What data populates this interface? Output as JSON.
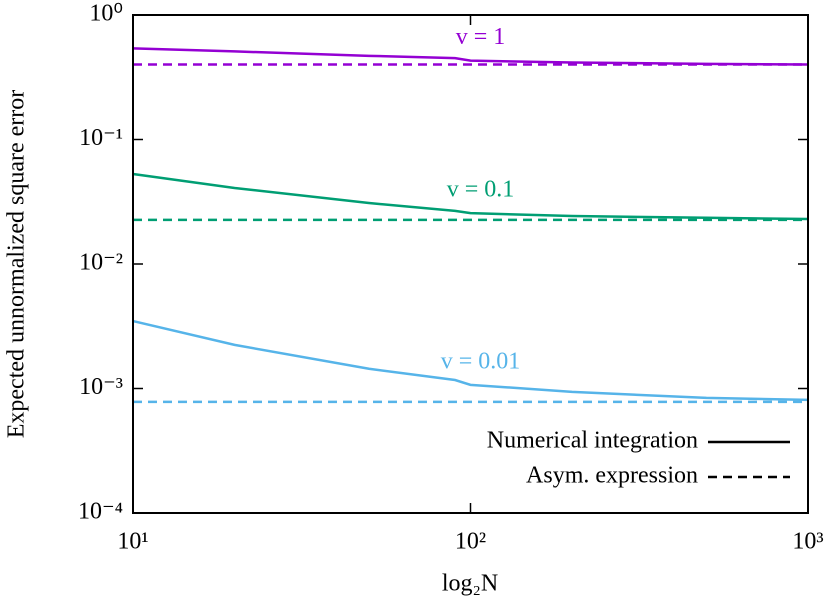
{
  "chart_data": {
    "type": "line",
    "xlabel": "log₂N",
    "ylabel": "Expected unnormalized square error",
    "x": [
      10,
      20,
      50,
      90,
      100,
      200,
      500,
      1000
    ],
    "xlim": [
      10,
      1000
    ],
    "ylim": [
      0.0001,
      1
    ],
    "xlog": true,
    "ylog": true,
    "xticks": [
      {
        "value": 10,
        "label": "10¹"
      },
      {
        "value": 100,
        "label": "10²"
      },
      {
        "value": 1000,
        "label": "10³"
      }
    ],
    "yticks": [
      {
        "value": 0.0001,
        "label": "10⁻⁴"
      },
      {
        "value": 0.001,
        "label": "10⁻³"
      },
      {
        "value": 0.01,
        "label": "10⁻²"
      },
      {
        "value": 0.1,
        "label": "10⁻¹"
      },
      {
        "value": 1,
        "label": "10⁰"
      }
    ],
    "legend_items": [
      {
        "label": "Numerical integration",
        "dashed": false
      },
      {
        "label": "Asym. expression",
        "dashed": true
      }
    ],
    "legend_color": "#000000",
    "series": [
      {
        "label": "v = 1",
        "color": "#9400d3",
        "dashed": false,
        "values": [
          0.54,
          0.51,
          0.47,
          0.45,
          0.43,
          0.415,
          0.405,
          0.4
        ]
      },
      {
        "color": "#9400d3",
        "dashed": true,
        "values": [
          0.4,
          0.4,
          0.4,
          0.4,
          0.4,
          0.4,
          0.4,
          0.4
        ]
      },
      {
        "label": "v = 0.1",
        "color": "#009e73",
        "dashed": false,
        "values": [
          0.0528,
          0.0408,
          0.0309,
          0.0267,
          0.0256,
          0.0243,
          0.0235,
          0.023
        ]
      },
      {
        "color": "#009e73",
        "dashed": true,
        "values": [
          0.0226,
          0.0226,
          0.0226,
          0.0226,
          0.0226,
          0.0226,
          0.0226,
          0.0226
        ]
      },
      {
        "label": "v = 0.01",
        "color": "#56b4e9",
        "dashed": false,
        "values": [
          0.00348,
          0.00224,
          0.00144,
          0.00117,
          0.00107,
          0.00094,
          0.00084,
          0.00081
        ]
      },
      {
        "color": "#56b4e9",
        "dashed": true,
        "values": [
          0.00078,
          0.00078,
          0.00078,
          0.00078,
          0.00078,
          0.00078,
          0.00078,
          0.00078
        ]
      }
    ]
  }
}
